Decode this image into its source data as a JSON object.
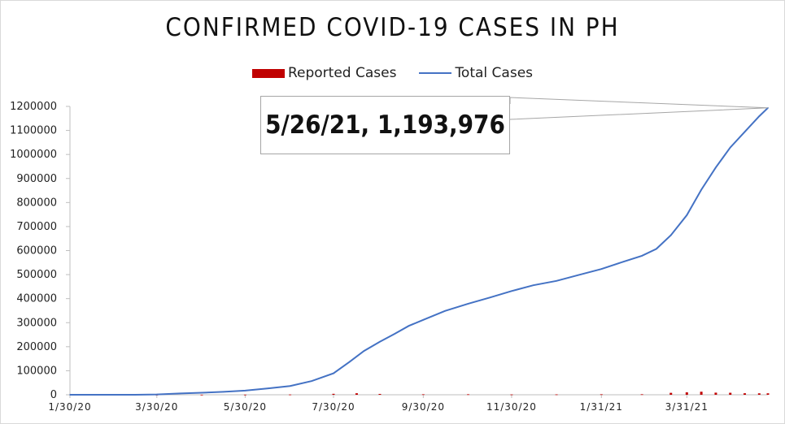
{
  "chart_data": {
    "type": "line",
    "title": "CONFIRMED COVID-19 CASES IN PH",
    "xlabel": "",
    "ylabel": "",
    "ylim": [
      0,
      1200000
    ],
    "y_ticks": [
      "0",
      "100000",
      "200000",
      "300000",
      "400000",
      "500000",
      "600000",
      "700000",
      "800000",
      "900000",
      "1000000",
      "1100000",
      "1200000"
    ],
    "x_tick_labels": [
      "1/30/20",
      "3/30/20",
      "5/30/20",
      "7/30/20",
      "9/30/20",
      "11/30/20",
      "1/31/21",
      "3/31/21"
    ],
    "legend": {
      "position": "top",
      "entries": [
        "Reported Cases",
        "Total Cases"
      ]
    },
    "annotation": "5/26/21, 1,193,976",
    "colors": {
      "reported": "#c00000",
      "total": "#4472c4"
    },
    "series": [
      {
        "name": "Total Cases",
        "type": "line",
        "x": [
          "1/30/20",
          "3/15/20",
          "3/30/20",
          "4/15/20",
          "4/30/20",
          "5/15/20",
          "5/30/20",
          "6/15/20",
          "6/30/20",
          "7/15/20",
          "7/30/20",
          "8/10/20",
          "8/20/20",
          "8/31/20",
          "9/10/20",
          "9/20/20",
          "9/30/20",
          "10/15/20",
          "10/31/20",
          "11/15/20",
          "11/30/20",
          "12/15/20",
          "12/31/20",
          "1/15/21",
          "1/31/21",
          "2/15/21",
          "2/28/21",
          "3/10/21",
          "3/20/21",
          "3/31/21",
          "4/10/21",
          "4/20/21",
          "4/30/21",
          "5/10/21",
          "5/20/21",
          "5/26/21"
        ],
        "values": [
          1,
          140,
          1418,
          5453,
          8488,
          12305,
          17224,
          26781,
          36438,
          57006,
          89374,
          136638,
          182365,
          220819,
          252964,
          286743,
          311694,
          348698,
          378933,
          404713,
          431630,
          455600,
          474064,
          497916,
          523308,
          553425,
          578381,
          607048,
          663794,
          747288,
          853209,
          945745,
          1028834,
          1094290,
          1159123,
          1193976
        ]
      },
      {
        "name": "Reported Cases",
        "type": "bar",
        "x": [
          "3/30/20",
          "4/30/20",
          "5/30/20",
          "6/30/20",
          "7/30/20",
          "8/15/20",
          "8/31/20",
          "9/30/20",
          "10/31/20",
          "11/30/20",
          "12/31/20",
          "1/31/21",
          "2/28/21",
          "3/20/21",
          "3/31/21",
          "4/10/21",
          "4/20/21",
          "4/30/21",
          "5/10/21",
          "5/20/21",
          "5/26/21"
        ],
        "values": [
          128,
          276,
          590,
          1080,
          3954,
          6216,
          3483,
          2025,
          1999,
          1337,
          1541,
          2077,
          2113,
          7999,
          10011,
          12674,
          8758,
          8276,
          6208,
          5921,
          5954
        ]
      }
    ]
  }
}
